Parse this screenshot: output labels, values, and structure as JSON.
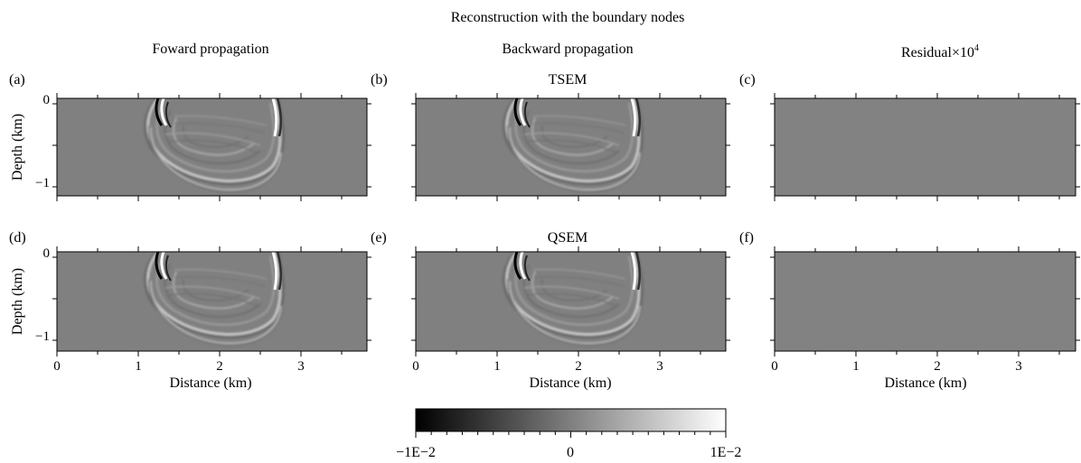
{
  "title": "Reconstruction with the boundary nodes",
  "column_titles": {
    "forward": "Foward propagation",
    "backward": "Backward propagation",
    "residual_prefix": "Residual×10",
    "residual_exp": "4"
  },
  "row_labels": [
    "TSEM",
    "QSEM"
  ],
  "panel_letters": [
    "(a)",
    "(b)",
    "(c)",
    "(d)",
    "(e)",
    "(f)"
  ],
  "axes": {
    "ylabel": "Depth (km)",
    "xlabel": "Distance (km)",
    "yticks": [
      "0",
      "−1"
    ],
    "xticks": [
      "0",
      "1",
      "2",
      "3"
    ]
  },
  "colorbar": {
    "min_label": "−1E−2",
    "mid_label": "0",
    "max_label": "1E−2",
    "colormap": [
      "#000000",
      "#ffffff"
    ]
  },
  "colors": {
    "background_field": "#808080",
    "residual_field": "#858585"
  }
}
